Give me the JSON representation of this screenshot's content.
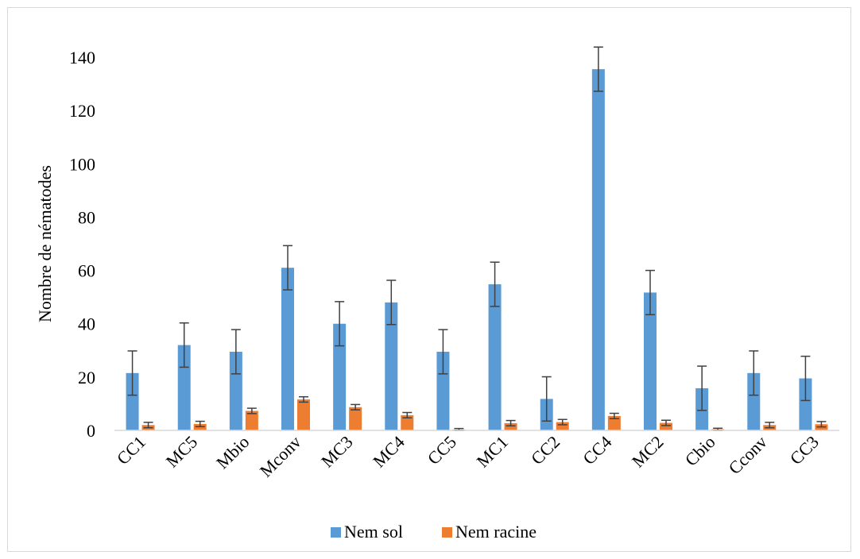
{
  "chart_data": {
    "type": "bar",
    "title": "",
    "xlabel": "",
    "ylabel": "Nombre de nématodes",
    "ylim": [
      0,
      140
    ],
    "yticks": [
      0,
      20,
      40,
      60,
      80,
      100,
      120,
      140
    ],
    "grid": false,
    "legend_position": "bottom",
    "categories": [
      "CC1",
      "MC5",
      "Mbio",
      "Mconv",
      "MC3",
      "MC4",
      "CC5",
      "MC1",
      "CC2",
      "CC4",
      "MC2",
      "Cbio",
      "Cconv",
      "CC3"
    ],
    "series": [
      {
        "name": "Nem sol",
        "color": "#5b9bd5",
        "values": [
          21.5,
          32,
          29.5,
          61,
          40,
          48,
          29.5,
          54.8,
          11.8,
          135.5,
          51.7,
          15.8,
          21.5,
          19.5
        ],
        "errors": [
          8.3,
          8.3,
          8.3,
          8.3,
          8.3,
          8.3,
          8.3,
          8.3,
          8.3,
          8.3,
          8.3,
          8.3,
          8.3,
          8.3
        ]
      },
      {
        "name": "Nem racine",
        "color": "#ed7d31",
        "values": [
          2,
          2.4,
          7.3,
          11.6,
          8.7,
          5.7,
          0.3,
          2.7,
          3.1,
          5.4,
          2.8,
          0.4,
          2,
          2.3
        ],
        "errors": [
          1,
          1,
          1,
          1,
          1,
          1,
          0.4,
          1,
          1,
          1,
          1,
          0.4,
          1,
          1
        ]
      }
    ]
  }
}
